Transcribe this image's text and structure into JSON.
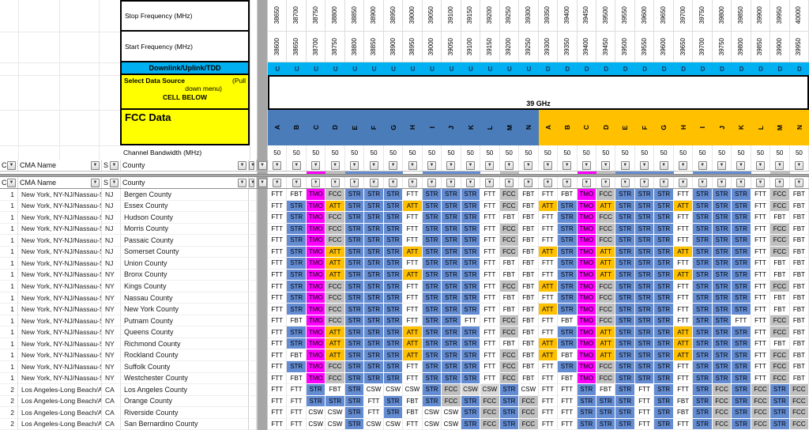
{
  "top_labels": {
    "stop": "Stop Frequency (MHz)",
    "start": "Start Frequency (MHz)",
    "downlink": "Downlink/Uplink/TDD",
    "select_line1_bold": "Select Data Source",
    "select_line1_right": "(Pull",
    "select_line2": "down menu)",
    "select_line3": "CELL BELOW",
    "fcc": "FCC Data",
    "bandwidth": "Channel Bandwidth (MHz)",
    "band": "39 GHz"
  },
  "filter_header": {
    "cma_number": "C",
    "cma_name": "CMA Name",
    "state": "S",
    "county": "County"
  },
  "dropdown_glyph": "▼",
  "columns": {
    "stop_freq": [
      "38650",
      "38700",
      "38750",
      "38800",
      "38850",
      "38900",
      "38950",
      "39000",
      "39050",
      "39100",
      "39150",
      "39200",
      "39250",
      "39300",
      "39350",
      "39400",
      "39450",
      "39500",
      "39550",
      "39600",
      "39650",
      "39700",
      "39750",
      "39800",
      "39850",
      "39900",
      "39950",
      "40000"
    ],
    "start_freq": [
      "38600",
      "38650",
      "38700",
      "38750",
      "38800",
      "38850",
      "38900",
      "38950",
      "39000",
      "39050",
      "39100",
      "39150",
      "39200",
      "39250",
      "39300",
      "39350",
      "39400",
      "39450",
      "39500",
      "39550",
      "39600",
      "39650",
      "39700",
      "39750",
      "39800",
      "39850",
      "39900",
      "39950"
    ],
    "link_dir": [
      "U",
      "U",
      "U",
      "U",
      "U",
      "U",
      "U",
      "U",
      "U",
      "U",
      "U",
      "U",
      "U",
      "U",
      "D",
      "D",
      "D",
      "D",
      "D",
      "D",
      "D",
      "D",
      "D",
      "D",
      "D",
      "D",
      "D",
      "D"
    ],
    "channel_groups": [
      {
        "color": "#4a7cb9",
        "letters": [
          "A",
          "B",
          "C",
          "D",
          "E",
          "F",
          "G",
          "H",
          "I",
          "J",
          "K",
          "L",
          "M",
          "N"
        ]
      },
      {
        "color": "#ffc000",
        "letters": [
          "A",
          "B",
          "C",
          "D",
          "E",
          "F",
          "G",
          "H",
          "I",
          "J",
          "K",
          "L",
          "M",
          "N"
        ]
      }
    ],
    "bandwidth_value": "50"
  },
  "colors": {
    "cyan": "#00b0f0",
    "yellow": "#ffff00",
    "header_blue": "#4a7cb9",
    "header_orange": "#ffc000",
    "divider_gray": "#a6a6a6",
    "ud_text": "#17365d"
  },
  "cell_colors": {
    "FTT": "#ffffff",
    "FBT": "#ffffff",
    "CSW": "#ffffff",
    "CSW*": "#d9d9d9",
    "TMO": "#ff00ff",
    "FCC": "#bfbfbf",
    "STR": "#648cd2",
    "ATT": "#ffc000"
  },
  "rows": [
    {
      "n": "1",
      "name": "New York, NY-NJ/Nassau-S",
      "st": "NJ",
      "county": "Bergen County",
      "cells": [
        "FTT",
        "FBT",
        "TMO",
        "FCC",
        "STR",
        "STR",
        "STR",
        "FTT",
        "STR",
        "STR",
        "STR",
        "FTT",
        "FCC",
        "FBT",
        "FTT",
        "FBT",
        "TMO",
        "FCC",
        "STR",
        "STR",
        "STR",
        "FTT",
        "STR",
        "STR",
        "STR",
        "FTT",
        "FCC",
        "FBT"
      ]
    },
    {
      "n": "1",
      "name": "New York, NY-NJ/Nassau-S",
      "st": "NJ",
      "county": "Essex County",
      "cells": [
        "FTT",
        "STR",
        "TMO",
        "ATT",
        "STR",
        "STR",
        "STR",
        "ATT",
        "STR",
        "STR",
        "STR",
        "FTT",
        "FCC",
        "FBT",
        "ATT",
        "STR",
        "TMO",
        "ATT",
        "STR",
        "STR",
        "STR",
        "ATT",
        "STR",
        "STR",
        "STR",
        "FTT",
        "FCC",
        "FBT"
      ]
    },
    {
      "n": "1",
      "name": "New York, NY-NJ/Nassau-S",
      "st": "NJ",
      "county": "Hudson County",
      "cells": [
        "FTT",
        "STR",
        "TMO",
        "FCC",
        "STR",
        "STR",
        "STR",
        "FTT",
        "STR",
        "STR",
        "STR",
        "FTT",
        "FBT",
        "FBT",
        "FTT",
        "STR",
        "TMO",
        "FCC",
        "STR",
        "STR",
        "STR",
        "FTT",
        "STR",
        "STR",
        "STR",
        "FTT",
        "FBT",
        "FBT"
      ]
    },
    {
      "n": "1",
      "name": "New York, NY-NJ/Nassau-S",
      "st": "NJ",
      "county": "Morris County",
      "cells": [
        "FTT",
        "STR",
        "TMO",
        "FCC",
        "STR",
        "STR",
        "STR",
        "FTT",
        "STR",
        "STR",
        "STR",
        "FTT",
        "FCC",
        "FBT",
        "FTT",
        "STR",
        "TMO",
        "FCC",
        "STR",
        "STR",
        "STR",
        "FTT",
        "STR",
        "STR",
        "STR",
        "FTT",
        "FCC",
        "FBT"
      ]
    },
    {
      "n": "1",
      "name": "New York, NY-NJ/Nassau-S",
      "st": "NJ",
      "county": "Passaic County",
      "cells": [
        "FTT",
        "STR",
        "TMO",
        "FCC",
        "STR",
        "STR",
        "STR",
        "FTT",
        "STR",
        "STR",
        "STR",
        "FTT",
        "FCC",
        "FBT",
        "FTT",
        "STR",
        "TMO",
        "FCC",
        "STR",
        "STR",
        "STR",
        "FTT",
        "STR",
        "STR",
        "STR",
        "FTT",
        "FCC",
        "FBT"
      ]
    },
    {
      "n": "1",
      "name": "New York, NY-NJ/Nassau-S",
      "st": "NJ",
      "county": "Somerset County",
      "cells": [
        "FTT",
        "STR",
        "TMO",
        "ATT",
        "STR",
        "STR",
        "STR",
        "ATT",
        "STR",
        "STR",
        "STR",
        "FTT",
        "FCC",
        "FBT",
        "ATT",
        "STR",
        "TMO",
        "ATT",
        "STR",
        "STR",
        "STR",
        "ATT",
        "STR",
        "STR",
        "STR",
        "FTT",
        "FCC",
        "FBT"
      ]
    },
    {
      "n": "1",
      "name": "New York, NY-NJ/Nassau-S",
      "st": "NJ",
      "county": "Union County",
      "cells": [
        "FTT",
        "STR",
        "TMO",
        "ATT",
        "STR",
        "STR",
        "STR",
        "FTT",
        "STR",
        "STR",
        "STR",
        "FTT",
        "FBT",
        "FBT",
        "FTT",
        "STR",
        "TMO",
        "ATT",
        "STR",
        "STR",
        "STR",
        "FTT",
        "STR",
        "STR",
        "STR",
        "FTT",
        "FBT",
        "FBT"
      ]
    },
    {
      "n": "1",
      "name": "New York, NY-NJ/Nassau-S",
      "st": "NY",
      "county": "Bronx County",
      "cells": [
        "FTT",
        "STR",
        "TMO",
        "ATT",
        "STR",
        "STR",
        "STR",
        "ATT",
        "STR",
        "STR",
        "STR",
        "FTT",
        "FBT",
        "FBT",
        "FTT",
        "STR",
        "TMO",
        "ATT",
        "STR",
        "STR",
        "STR",
        "ATT",
        "STR",
        "STR",
        "STR",
        "FTT",
        "FBT",
        "FBT"
      ]
    },
    {
      "n": "1",
      "name": "New York, NY-NJ/Nassau-S",
      "st": "NY",
      "county": "Kings County",
      "cells": [
        "FTT",
        "STR",
        "TMO",
        "FCC",
        "STR",
        "STR",
        "STR",
        "FTT",
        "STR",
        "STR",
        "STR",
        "FTT",
        "FCC",
        "FBT",
        "ATT",
        "STR",
        "TMO",
        "FCC",
        "STR",
        "STR",
        "STR",
        "FTT",
        "STR",
        "STR",
        "STR",
        "FTT",
        "FCC",
        "FBT"
      ]
    },
    {
      "n": "1",
      "name": "New York, NY-NJ/Nassau-S",
      "st": "NY",
      "county": "Nassau County",
      "cells": [
        "FTT",
        "STR",
        "TMO",
        "FCC",
        "STR",
        "STR",
        "STR",
        "FTT",
        "STR",
        "STR",
        "STR",
        "FTT",
        "FBT",
        "FBT",
        "FTT",
        "STR",
        "TMO",
        "FCC",
        "STR",
        "STR",
        "STR",
        "FTT",
        "STR",
        "STR",
        "STR",
        "FTT",
        "FBT",
        "FBT"
      ]
    },
    {
      "n": "1",
      "name": "New York, NY-NJ/Nassau-S",
      "st": "NY",
      "county": "New York County",
      "cells": [
        "FTT",
        "STR",
        "TMO",
        "FCC",
        "STR",
        "STR",
        "STR",
        "FTT",
        "STR",
        "STR",
        "STR",
        "FTT",
        "FBT",
        "FBT",
        "ATT",
        "STR",
        "TMO",
        "FCC",
        "STR",
        "STR",
        "STR",
        "FTT",
        "STR",
        "STR",
        "STR",
        "FTT",
        "FBT",
        "FBT"
      ]
    },
    {
      "n": "1",
      "name": "New York, NY-NJ/Nassau-S",
      "st": "NY",
      "county": "Putnam County",
      "cells": [
        "FTT",
        "FBT",
        "TMO",
        "FCC",
        "STR",
        "STR",
        "STR",
        "FTT",
        "STR",
        "STR",
        "FTT",
        "FTT",
        "FCC",
        "FBT",
        "FTT",
        "FBT",
        "TMO",
        "FCC",
        "STR",
        "STR",
        "STR",
        "FTT",
        "STR",
        "STR",
        "FTT",
        "FTT",
        "FCC",
        "FBT"
      ]
    },
    {
      "n": "1",
      "name": "New York, NY-NJ/Nassau-S",
      "st": "NY",
      "county": "Queens County",
      "cells": [
        "FTT",
        "STR",
        "TMO",
        "ATT",
        "STR",
        "STR",
        "STR",
        "ATT",
        "STR",
        "STR",
        "STR",
        "FTT",
        "FCC",
        "FBT",
        "FTT",
        "STR",
        "TMO",
        "ATT",
        "STR",
        "STR",
        "STR",
        "ATT",
        "STR",
        "STR",
        "STR",
        "FTT",
        "FCC",
        "FBT"
      ]
    },
    {
      "n": "1",
      "name": "New York, NY-NJ/Nassau-S",
      "st": "NY",
      "county": "Richmond County",
      "cells": [
        "FTT",
        "STR",
        "TMO",
        "ATT",
        "STR",
        "STR",
        "STR",
        "ATT",
        "STR",
        "STR",
        "STR",
        "FTT",
        "FBT",
        "FBT",
        "ATT",
        "STR",
        "TMO",
        "ATT",
        "STR",
        "STR",
        "STR",
        "ATT",
        "STR",
        "STR",
        "STR",
        "FTT",
        "FBT",
        "FBT"
      ]
    },
    {
      "n": "1",
      "name": "New York, NY-NJ/Nassau-S",
      "st": "NY",
      "county": "Rockland County",
      "cells": [
        "FTT",
        "FBT",
        "TMO",
        "ATT",
        "STR",
        "STR",
        "STR",
        "ATT",
        "STR",
        "STR",
        "STR",
        "FTT",
        "FCC",
        "FBT",
        "ATT",
        "FBT",
        "TMO",
        "ATT",
        "STR",
        "STR",
        "STR",
        "ATT",
        "STR",
        "STR",
        "STR",
        "FTT",
        "FCC",
        "FBT"
      ]
    },
    {
      "n": "1",
      "name": "New York, NY-NJ/Nassau-S",
      "st": "NY",
      "county": "Suffolk County",
      "cells": [
        "FTT",
        "STR",
        "TMO",
        "FCC",
        "STR",
        "STR",
        "STR",
        "FTT",
        "STR",
        "STR",
        "STR",
        "FTT",
        "FCC",
        "FBT",
        "FTT",
        "STR",
        "TMO",
        "FCC",
        "STR",
        "STR",
        "STR",
        "FTT",
        "STR",
        "STR",
        "STR",
        "FTT",
        "FCC",
        "FBT"
      ]
    },
    {
      "n": "1",
      "name": "New York, NY-NJ/Nassau-S",
      "st": "NY",
      "county": "Westchester County",
      "cells": [
        "FTT",
        "FBT",
        "TMO",
        "FCC",
        "STR",
        "STR",
        "STR",
        "FTT",
        "STR",
        "STR",
        "STR",
        "FTT",
        "FCC",
        "FBT",
        "FTT",
        "FBT",
        "TMO",
        "FCC",
        "STR",
        "STR",
        "STR",
        "FTT",
        "STR",
        "STR",
        "STR",
        "FTT",
        "FCC",
        "FBT"
      ]
    },
    {
      "n": "2",
      "name": "Los Angeles-Long Beach/A",
      "st": "CA",
      "county": "Los Angeles County",
      "cells": [
        "FTT",
        "FTT",
        "STR",
        "FBT",
        "STR",
        "CSW",
        "CSW",
        "CSW",
        "STR",
        "FCC",
        "CSW*",
        "CSW*",
        "STR",
        "CSW",
        "FTT",
        "FTT",
        "STR",
        "FBT",
        "STR",
        "FTT",
        "STR",
        "FTT",
        "STR",
        "FCC",
        "STR",
        "FCC",
        "STR",
        "FCC"
      ]
    },
    {
      "n": "2",
      "name": "Los Angeles-Long Beach/A",
      "st": "CA",
      "county": "Orange County",
      "cells": [
        "FTT",
        "FTT",
        "STR",
        "STR",
        "STR",
        "FTT",
        "STR",
        "FBT",
        "STR",
        "FCC",
        "STR",
        "FCC",
        "STR",
        "FCC",
        "FTT",
        "FTT",
        "STR",
        "STR",
        "STR",
        "FTT",
        "STR",
        "FBT",
        "STR",
        "FCC",
        "STR",
        "FCC",
        "STR",
        "FCC"
      ]
    },
    {
      "n": "2",
      "name": "Los Angeles-Long Beach/A",
      "st": "CA",
      "county": "Riverside County",
      "cells": [
        "FTT",
        "FTT",
        "CSW",
        "CSW",
        "STR",
        "FTT",
        "STR",
        "FBT",
        "CSW",
        "CSW",
        "STR",
        "FCC",
        "STR",
        "FCC",
        "FTT",
        "FTT",
        "STR",
        "STR",
        "STR",
        "FTT",
        "STR",
        "FBT",
        "STR",
        "FCC",
        "STR",
        "FCC",
        "STR",
        "FCC"
      ]
    },
    {
      "n": "2",
      "name": "Los Angeles-Long Beach/A",
      "st": "CA",
      "county": "San Bernardino County",
      "cells": [
        "FTT",
        "FTT",
        "CSW",
        "CSW",
        "STR",
        "CSW",
        "CSW",
        "FTT",
        "CSW",
        "CSW",
        "STR",
        "FCC",
        "STR",
        "FCC",
        "FTT",
        "FTT",
        "STR",
        "STR",
        "STR",
        "FTT",
        "STR",
        "FTT",
        "STR",
        "FCC",
        "STR",
        "FCC",
        "STR",
        "FCC"
      ]
    }
  ]
}
